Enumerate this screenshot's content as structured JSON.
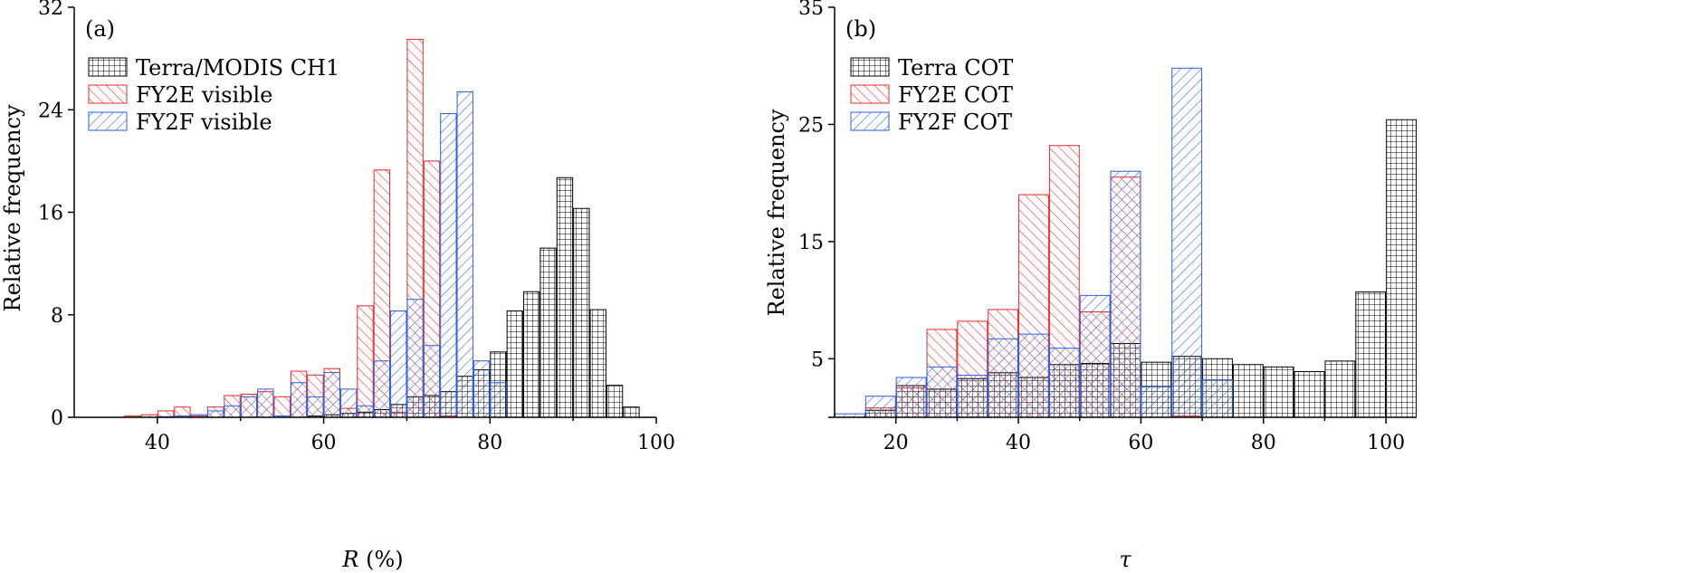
{
  "figure": {
    "colors": {
      "terra": "#000000",
      "fy2e": "#e8282b",
      "fy2f": "#2a5de8"
    }
  },
  "chart_data": [
    {
      "type": "bar",
      "panel_label": "(a)",
      "xlabel_italic": "R",
      "xlabel_rest": " (%)",
      "ylabel": "Relative frequency",
      "xlim": [
        30,
        100
      ],
      "ylim": [
        0,
        32
      ],
      "xticks": [
        40,
        60,
        80,
        100
      ],
      "yticks": [
        0,
        8,
        16,
        24,
        32
      ],
      "bin_width": 2,
      "legend_position": "top-left",
      "series": [
        {
          "name": "Terra/MODIS CH1",
          "key": "terra",
          "pattern": "grid",
          "x": [
            59,
            61,
            63,
            65,
            67,
            69,
            71,
            73,
            75,
            77,
            79,
            81,
            83,
            85,
            87,
            89,
            91,
            93,
            95,
            97
          ],
          "values": [
            0.1,
            0.2,
            0.3,
            0.4,
            0.6,
            1.0,
            1.6,
            1.7,
            2.0,
            3.2,
            3.7,
            5.1,
            8.3,
            9.8,
            13.2,
            18.7,
            16.3,
            8.4,
            2.5,
            0.8
          ]
        },
        {
          "name": "FY2E visible",
          "key": "fy2e",
          "pattern": "hatch-right",
          "x": [
            37,
            39,
            41,
            43,
            45,
            47,
            49,
            51,
            53,
            55,
            57,
            59,
            61,
            63,
            65,
            67,
            69,
            71,
            73,
            75
          ],
          "values": [
            0.1,
            0.2,
            0.5,
            0.8,
            0.1,
            0.8,
            1.7,
            1.8,
            2.0,
            1.6,
            3.6,
            3.3,
            3.8,
            0.7,
            8.7,
            19.3,
            0.4,
            29.5,
            20.0,
            0.1
          ]
        },
        {
          "name": "FY2F visible",
          "key": "fy2f",
          "pattern": "hatch-left",
          "x": [
            41,
            43,
            45,
            47,
            49,
            51,
            53,
            55,
            57,
            59,
            61,
            63,
            65,
            67,
            69,
            71,
            73,
            75,
            77,
            79,
            81
          ],
          "values": [
            0.05,
            0.1,
            0.2,
            0.5,
            0.9,
            1.6,
            2.2,
            0.1,
            2.7,
            1.6,
            3.5,
            2.2,
            0.9,
            4.4,
            8.3,
            9.2,
            5.6,
            23.7,
            25.4,
            4.4,
            2.7
          ]
        }
      ]
    },
    {
      "type": "bar",
      "panel_label": "(b)",
      "xlabel_italic": "τ",
      "xlabel_rest": "",
      "ylabel": "Relative frequency",
      "xlim": [
        10,
        105
      ],
      "ylim": [
        0,
        35
      ],
      "xticks": [
        20,
        40,
        60,
        80,
        100
      ],
      "yticks": [
        5,
        15,
        25,
        35
      ],
      "bin_width": 5,
      "legend_position": "top-left",
      "series": [
        {
          "name": "Terra COT",
          "key": "terra",
          "pattern": "grid",
          "x": [
            17.5,
            22.5,
            27.5,
            32.5,
            37.5,
            42.5,
            47.5,
            52.5,
            57.5,
            62.5,
            67.5,
            72.5,
            77.5,
            82.5,
            87.5,
            92.5,
            97.5,
            102.5
          ],
          "values": [
            0.6,
            2.7,
            2.4,
            3.3,
            3.8,
            3.4,
            4.5,
            4.6,
            6.3,
            4.7,
            5.2,
            5.0,
            4.5,
            4.3,
            3.9,
            4.8,
            10.7,
            25.4
          ]
        },
        {
          "name": "FY2E COT",
          "key": "fy2e",
          "pattern": "hatch-right",
          "x": [
            17.5,
            22.5,
            27.5,
            32.5,
            37.5,
            42.5,
            47.5,
            52.5,
            57.5,
            67.5
          ],
          "values": [
            0.8,
            2.5,
            7.5,
            8.2,
            9.2,
            19.0,
            23.2,
            9.0,
            20.5,
            0.1
          ]
        },
        {
          "name": "FY2F COT",
          "key": "fy2f",
          "pattern": "hatch-left",
          "x": [
            12.5,
            17.5,
            22.5,
            27.5,
            32.5,
            37.5,
            42.5,
            47.5,
            52.5,
            57.5,
            62.5,
            67.5,
            72.5
          ],
          "values": [
            0.3,
            1.8,
            3.4,
            4.3,
            3.6,
            6.7,
            7.1,
            5.9,
            10.4,
            21.0,
            2.6,
            29.8,
            3.2
          ]
        }
      ]
    }
  ]
}
